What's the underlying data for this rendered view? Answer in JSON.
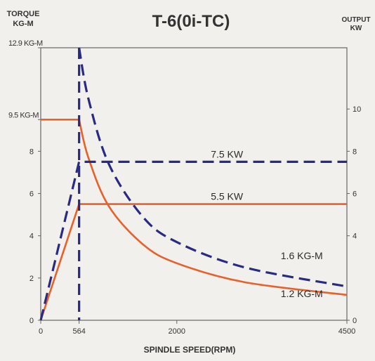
{
  "chart_data": {
    "type": "line",
    "title": "T-6(0i-TC)",
    "left_axis_label_line1": "TORQUE",
    "left_axis_label_line2": "KG-M",
    "right_axis_label_line1": "OUTPUT",
    "right_axis_label_line2": "KW",
    "xlabel": "SPINDLE SPEED(RPM)",
    "x_ticks": [
      {
        "value": 0,
        "label": "0"
      },
      {
        "value": 564,
        "label": "564"
      },
      {
        "value": 2000,
        "label": "2000"
      },
      {
        "value": 4500,
        "label": "4500"
      }
    ],
    "left_ticks": [
      {
        "value": 0,
        "label": "0"
      },
      {
        "value": 2,
        "label": "2"
      },
      {
        "value": 4,
        "label": "4"
      },
      {
        "value": 6,
        "label": "6"
      },
      {
        "value": 8,
        "label": "8"
      },
      {
        "value": 9.5,
        "label": "9.5 KG-M"
      },
      {
        "value": 12.9,
        "label": "12.9 KG-M"
      }
    ],
    "right_ticks": [
      {
        "value": 0,
        "label": "0"
      },
      {
        "value": 4,
        "label": "4"
      },
      {
        "value": 6,
        "label": "6"
      },
      {
        "value": 8,
        "label": "8"
      },
      {
        "value": 10,
        "label": "10"
      }
    ],
    "xlim": [
      0,
      4500
    ],
    "left_ylim": [
      0,
      12.9
    ],
    "right_ylim": [
      0,
      12.9
    ],
    "series": [
      {
        "axis": "left",
        "color": "#e8602a",
        "dash": "solid",
        "x": [
          0,
          564,
          564,
          700,
          1000,
          1500,
          2000,
          3000,
          4500
        ],
        "y": [
          9.5,
          9.5,
          9.5,
          7.7,
          5.4,
          3.6,
          2.7,
          1.8,
          1.2
        ]
      },
      {
        "axis": "left",
        "color": "#2a2a80",
        "dash": "dashed",
        "x": [
          564,
          700,
          1000,
          1500,
          2000,
          3000,
          4500
        ],
        "y": [
          12.9,
          10.5,
          7.4,
          4.9,
          3.7,
          2.5,
          1.6
        ]
      },
      {
        "axis": "right",
        "color": "#e8602a",
        "dash": "solid",
        "x": [
          0,
          564,
          4500
        ],
        "y": [
          0,
          5.5,
          5.5
        ]
      },
      {
        "axis": "right",
        "color": "#2a2a80",
        "dash": "dashed",
        "x": [
          0,
          564,
          4500
        ],
        "y": [
          0,
          7.5,
          7.5
        ]
      }
    ],
    "vline": {
      "x": 564,
      "color": "#2a2a80",
      "dash": "dashed"
    },
    "annotations": [
      {
        "text": "7.5 KW",
        "x": 2200,
        "y_axis": "right",
        "y": 7.5,
        "color": "#2a2a80"
      },
      {
        "text": "5.5 KW",
        "x": 2200,
        "y_axis": "right",
        "y": 5.5,
        "color": "#e8602a"
      },
      {
        "text": "1.6 KG-M",
        "x": 3300,
        "y_axis": "left",
        "y": 2.7
      },
      {
        "text": "1.2 KG-M",
        "x": 3300,
        "y_axis": "left",
        "y": 0.9
      }
    ],
    "grid": false,
    "legend": "none"
  }
}
